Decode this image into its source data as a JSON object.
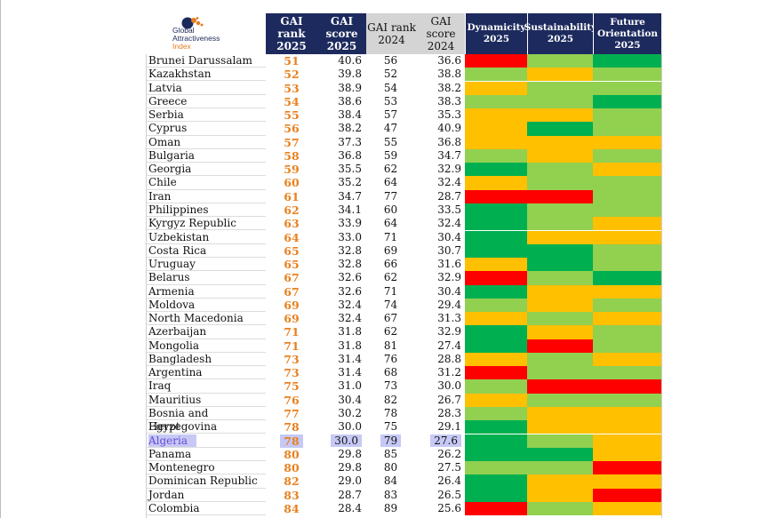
{
  "logo": {
    "line1": "Global",
    "line2": "Attractiveness",
    "line3": "Index"
  },
  "headers": {
    "gai_rank_2025": [
      "GAI rank",
      "2025"
    ],
    "gai_score_2025": [
      "GAI score",
      "2025"
    ],
    "gai_rank_2024": [
      "GAI rank",
      "2024"
    ],
    "gai_score_2024": [
      "GAI score",
      "2024"
    ],
    "dynamicity": [
      "Dynamicity",
      "2025"
    ],
    "sustainability": [
      "Sustainability",
      "2025"
    ],
    "future": [
      "Future",
      "Orientation",
      "2025"
    ]
  },
  "colors": {
    "G": "#00b050",
    "L": "#92d050",
    "Y": "#ffc000",
    "R": "#ff0000"
  },
  "highlight_country": "Algeria",
  "rows": [
    {
      "country": "Brunei Darussalam",
      "r25": "51",
      "s25": "40.6",
      "r24": "56",
      "s24": "36.6",
      "d": "R",
      "s": "L",
      "f": "G"
    },
    {
      "country": "Kazakhstan",
      "r25": "52",
      "s25": "39.8",
      "r24": "52",
      "s24": "38.8",
      "d": "L",
      "s": "Y",
      "f": "L"
    },
    {
      "country": "Latvia",
      "r25": "53",
      "s25": "38.9",
      "r24": "54",
      "s24": "38.2",
      "d": "Y",
      "s": "L",
      "f": "L"
    },
    {
      "country": "Greece",
      "r25": "54",
      "s25": "38.6",
      "r24": "53",
      "s24": "38.3",
      "d": "L",
      "s": "L",
      "f": "G"
    },
    {
      "country": "Serbia",
      "r25": "55",
      "s25": "38.4",
      "r24": "57",
      "s24": "35.3",
      "d": "Y",
      "s": "Y",
      "f": "L"
    },
    {
      "country": "Cyprus",
      "r25": "56",
      "s25": "38.2",
      "r24": "47",
      "s24": "40.9",
      "d": "Y",
      "s": "G",
      "f": "L"
    },
    {
      "country": "Oman",
      "r25": "57",
      "s25": "37.3",
      "r24": "55",
      "s24": "36.8",
      "d": "Y",
      "s": "Y",
      "f": "Y"
    },
    {
      "country": "Bulgaria",
      "r25": "58",
      "s25": "36.8",
      "r24": "59",
      "s24": "34.7",
      "d": "L",
      "s": "Y",
      "f": "L"
    },
    {
      "country": "Georgia",
      "r25": "59",
      "s25": "35.5",
      "r24": "62",
      "s24": "32.9",
      "d": "G",
      "s": "L",
      "f": "Y"
    },
    {
      "country": "Chile",
      "r25": "60",
      "s25": "35.2",
      "r24": "64",
      "s24": "32.4",
      "d": "Y",
      "s": "L",
      "f": "L"
    },
    {
      "country": "Iran",
      "r25": "61",
      "s25": "34.7",
      "r24": "77",
      "s24": "28.7",
      "d": "R",
      "s": "R",
      "f": "L"
    },
    {
      "country": "Philippines",
      "r25": "62",
      "s25": "34.1",
      "r24": "60",
      "s24": "33.5",
      "d": "G",
      "s": "L",
      "f": "L"
    },
    {
      "country": "Kyrgyz Republic",
      "r25": "63",
      "s25": "33.9",
      "r24": "64",
      "s24": "32.4",
      "d": "G",
      "s": "L",
      "f": "Y"
    },
    {
      "country": "Uzbekistan",
      "r25": "64",
      "s25": "33.0",
      "r24": "71",
      "s24": "30.4",
      "d": "G",
      "s": "Y",
      "f": "Y"
    },
    {
      "country": "Costa Rica",
      "r25": "65",
      "s25": "32.8",
      "r24": "69",
      "s24": "30.7",
      "d": "G",
      "s": "G",
      "f": "L"
    },
    {
      "country": "Uruguay",
      "r25": "65",
      "s25": "32.8",
      "r24": "66",
      "s24": "31.6",
      "d": "Y",
      "s": "G",
      "f": "L"
    },
    {
      "country": "Belarus",
      "r25": "67",
      "s25": "32.6",
      "r24": "62",
      "s24": "32.9",
      "d": "R",
      "s": "L",
      "f": "G"
    },
    {
      "country": "Armenia",
      "r25": "67",
      "s25": "32.6",
      "r24": "71",
      "s24": "30.4",
      "d": "G",
      "s": "Y",
      "f": "Y"
    },
    {
      "country": "Moldova",
      "r25": "69",
      "s25": "32.4",
      "r24": "74",
      "s24": "29.4",
      "d": "L",
      "s": "Y",
      "f": "L"
    },
    {
      "country": "North Macedonia",
      "r25": "69",
      "s25": "32.4",
      "r24": "67",
      "s24": "31.3",
      "d": "Y",
      "s": "L",
      "f": "Y"
    },
    {
      "country": "Azerbaijan",
      "r25": "71",
      "s25": "31.8",
      "r24": "62",
      "s24": "32.9",
      "d": "G",
      "s": "Y",
      "f": "L"
    },
    {
      "country": "Mongolia",
      "r25": "71",
      "s25": "31.8",
      "r24": "81",
      "s24": "27.4",
      "d": "G",
      "s": "R",
      "f": "L"
    },
    {
      "country": "Bangladesh",
      "r25": "73",
      "s25": "31.4",
      "r24": "76",
      "s24": "28.8",
      "d": "Y",
      "s": "L",
      "f": "Y"
    },
    {
      "country": "Argentina",
      "r25": "73",
      "s25": "31.4",
      "r24": "68",
      "s24": "31.2",
      "d": "R",
      "s": "L",
      "f": "L"
    },
    {
      "country": "Iraq",
      "r25": "75",
      "s25": "31.0",
      "r24": "73",
      "s24": "30.0",
      "d": "L",
      "s": "R",
      "f": "R"
    },
    {
      "country": "Mauritius",
      "r25": "76",
      "s25": "30.4",
      "r24": "82",
      "s24": "26.7",
      "d": "Y",
      "s": "L",
      "f": "L"
    },
    {
      "country": "Bosnia and Herzegovina",
      "r25": "77",
      "s25": "30.2",
      "r24": "78",
      "s24": "28.3",
      "d": "L",
      "s": "Y",
      "f": "Y"
    },
    {
      "country": "Egypt",
      "r25": "78",
      "s25": "30.0",
      "r24": "75",
      "s24": "29.1",
      "d": "G",
      "s": "Y",
      "f": "Y"
    },
    {
      "country": "Algeria",
      "r25": "78",
      "s25": "30.0",
      "r24": "79",
      "s24": "27.6",
      "d": "G",
      "s": "L",
      "f": "Y"
    },
    {
      "country": "Panama",
      "r25": "80",
      "s25": "29.8",
      "r24": "85",
      "s24": "26.2",
      "d": "G",
      "s": "G",
      "f": "Y"
    },
    {
      "country": "Montenegro",
      "r25": "80",
      "s25": "29.8",
      "r24": "80",
      "s24": "27.5",
      "d": "L",
      "s": "L",
      "f": "R"
    },
    {
      "country": "Dominican Republic",
      "r25": "82",
      "s25": "29.0",
      "r24": "84",
      "s24": "26.4",
      "d": "G",
      "s": "Y",
      "f": "Y"
    },
    {
      "country": "Jordan",
      "r25": "83",
      "s25": "28.7",
      "r24": "83",
      "s24": "26.5",
      "d": "G",
      "s": "Y",
      "f": "R"
    },
    {
      "country": "Colombia",
      "r25": "84",
      "s25": "28.4",
      "r24": "89",
      "s24": "25.6",
      "d": "R",
      "s": "L",
      "f": "Y"
    }
  ]
}
